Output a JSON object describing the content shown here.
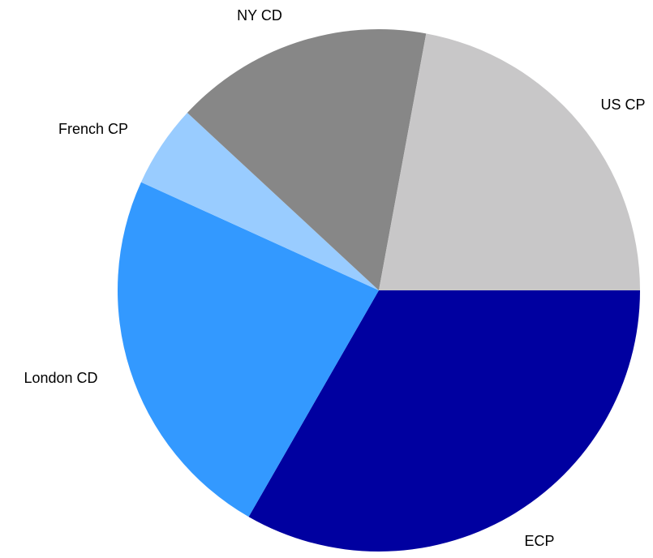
{
  "chart_data": {
    "type": "pie",
    "categories": [
      "ECP",
      "London CD",
      "French CP",
      "NY CD",
      "US CP"
    ],
    "values": [
      33.3,
      23.5,
      5.1,
      16.0,
      22.1
    ],
    "colors": [
      "#0000a0",
      "#3399ff",
      "#99ccff",
      "#878787",
      "#c8c7c8"
    ],
    "start_angle": 0,
    "direction": "clockwise"
  }
}
